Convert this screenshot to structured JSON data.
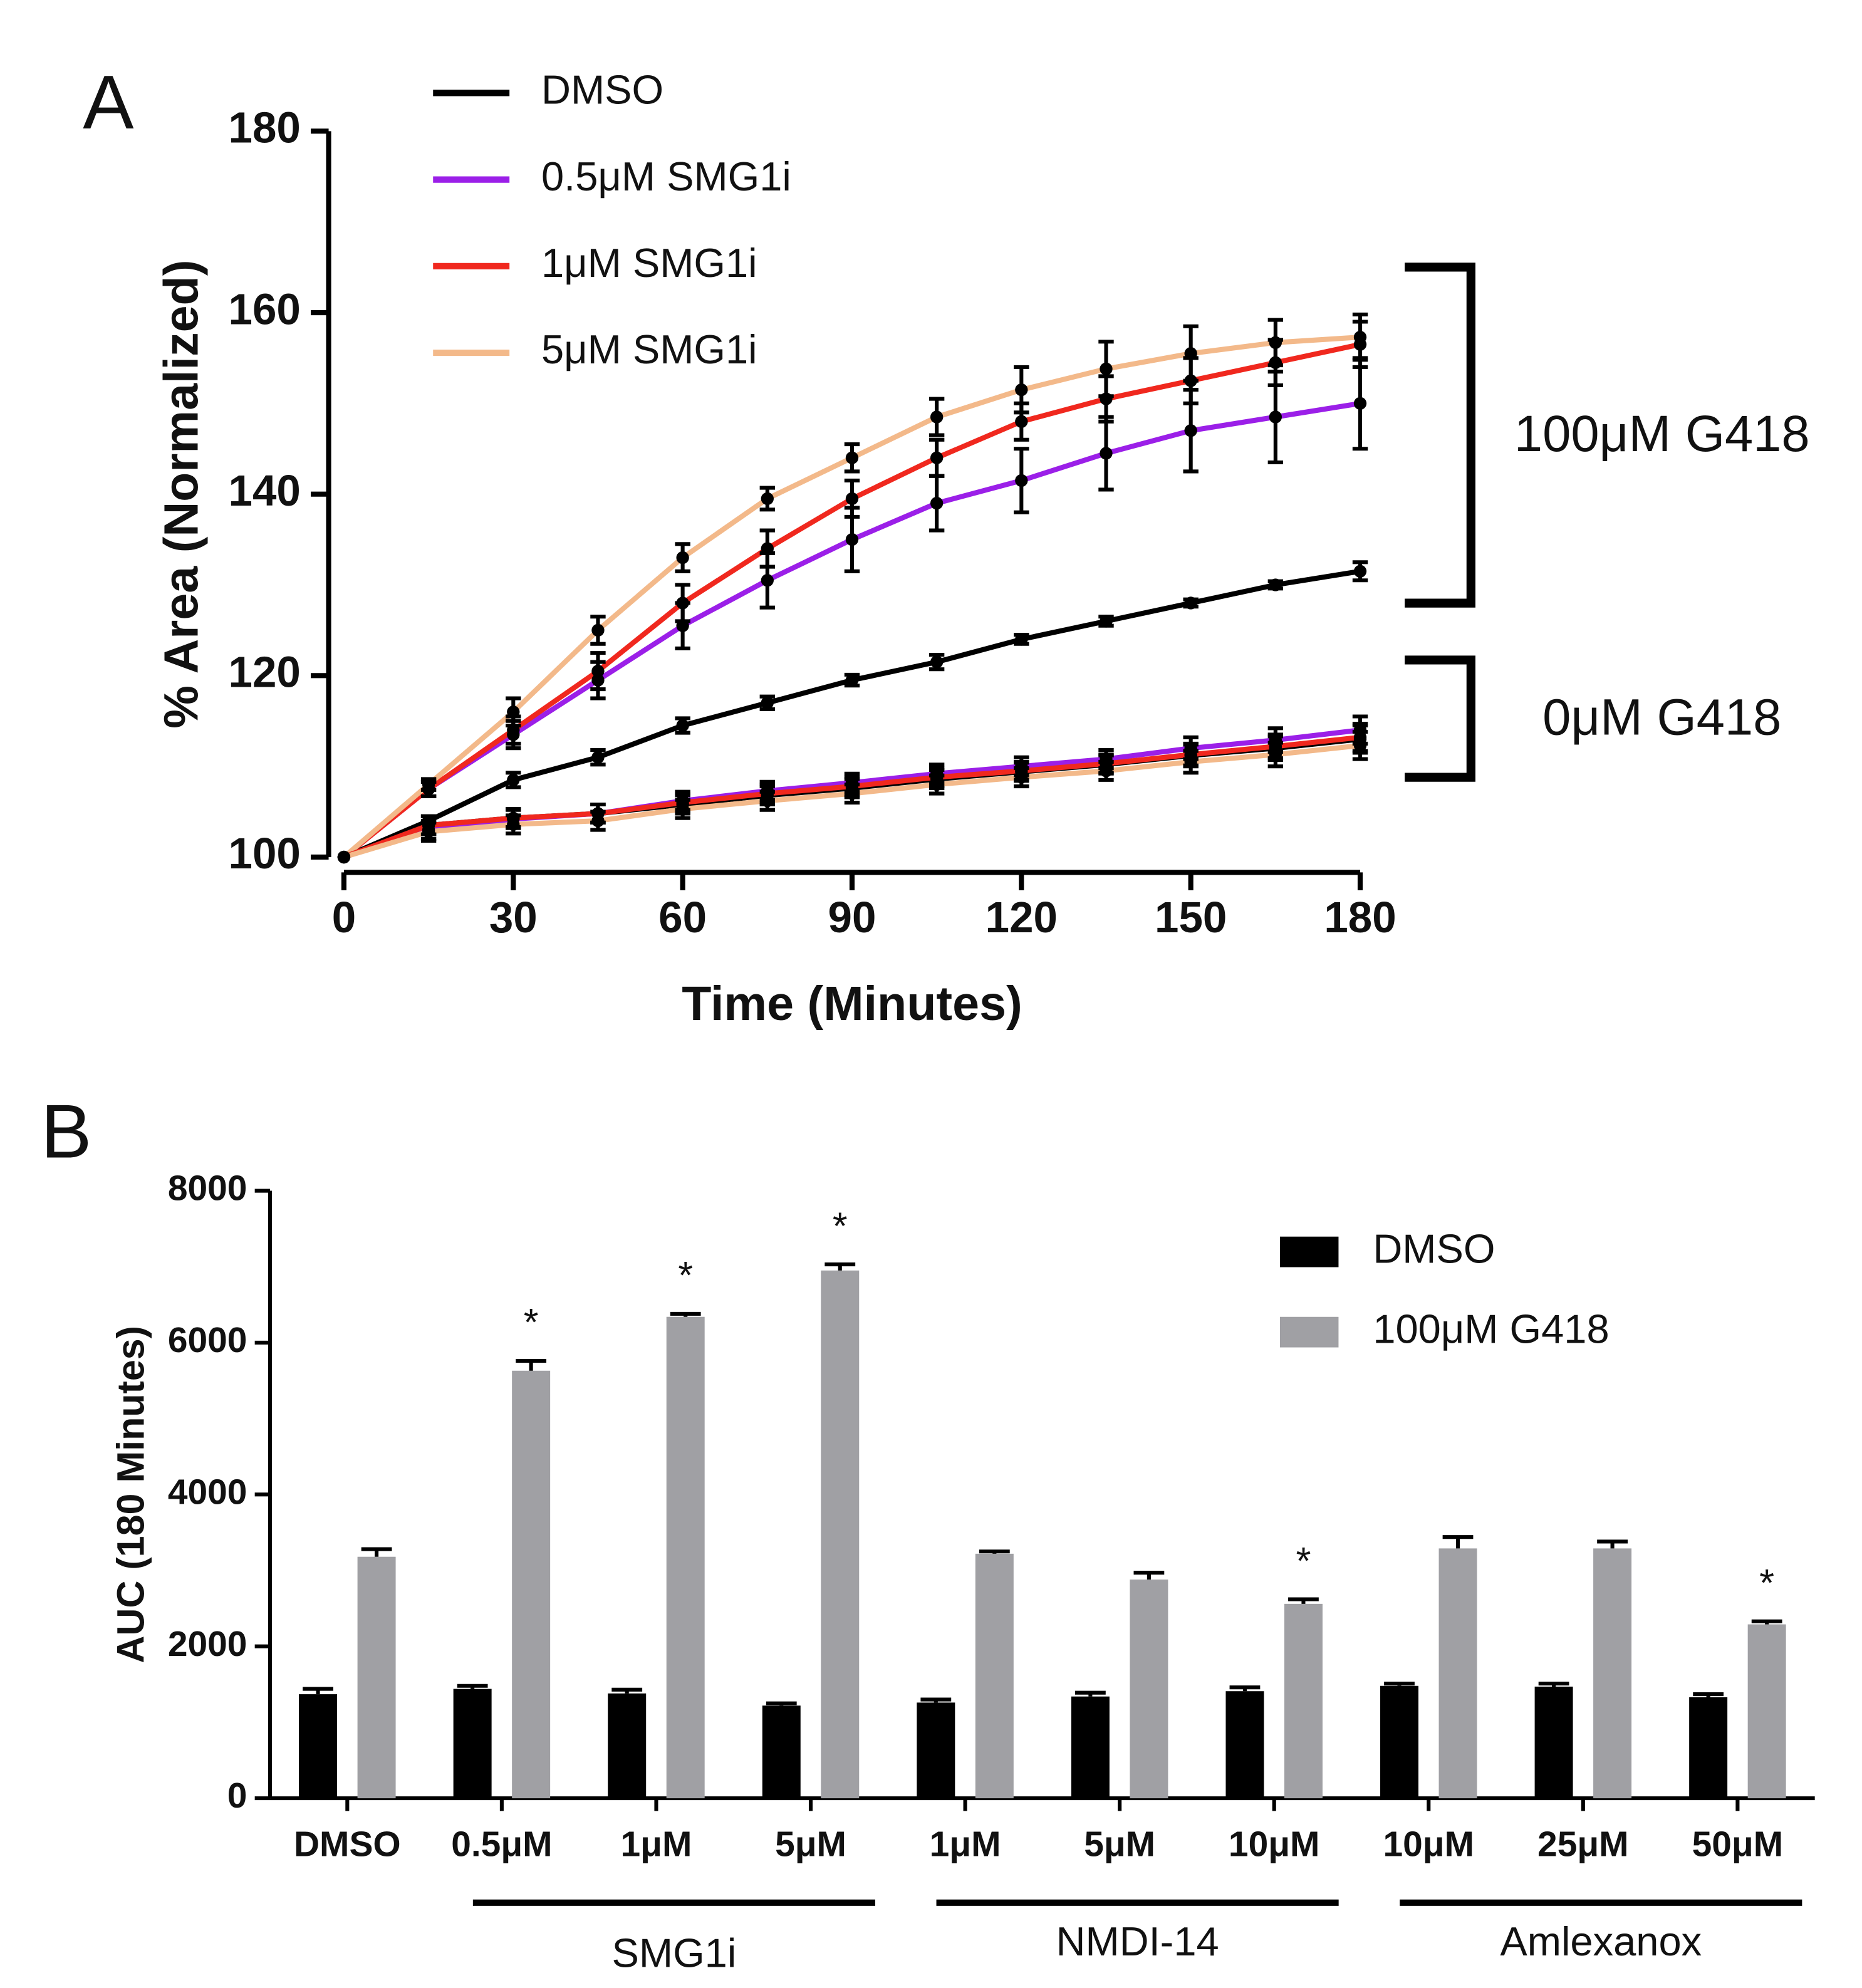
{
  "chart_data": [
    {
      "type": "line",
      "panel_label": "A",
      "x_label": "Time (Minutes)",
      "y_label": "% Area (Normalized)",
      "x": [
        0,
        15,
        30,
        45,
        60,
        75,
        90,
        105,
        120,
        135,
        150,
        165,
        180
      ],
      "xlim": [
        0,
        180
      ],
      "xticks": [
        0,
        30,
        60,
        90,
        120,
        150,
        180
      ],
      "ylim": [
        100,
        180
      ],
      "yticks": [
        100,
        120,
        140,
        160,
        180
      ],
      "series": [
        {
          "name": "DMSO",
          "color": "#000000"
        },
        {
          "name": "0.5μM SMG1i",
          "color": "#9b1fe8"
        },
        {
          "name": "1μM SMG1i",
          "color": "#f0281e"
        },
        {
          "name": "5μM SMG1i",
          "color": "#f3b98a"
        }
      ],
      "groups": [
        {
          "label": "100μM G418",
          "values": [
            [
              100,
              104,
              108.5,
              111,
              114.5,
              117,
              119.5,
              121.5,
              124,
              126,
              128,
              130,
              131.5
            ],
            [
              100,
              107.5,
              113.5,
              119.5,
              125.5,
              130.5,
              135,
              139,
              141.5,
              144.5,
              147,
              148.5,
              150
            ],
            [
              100,
              107.5,
              114,
              120.5,
              128,
              134,
              139.5,
              144,
              148,
              150.5,
              152.5,
              154.5,
              156.5
            ],
            [
              100,
              108,
              116,
              125,
              133,
              139.5,
              144,
              148.5,
              151.5,
              153.8,
              155.5,
              156.7,
              157.3
            ]
          ],
          "errors": [
            [
              0,
              0.5,
              0.8,
              0.8,
              0.8,
              0.7,
              0.6,
              0.8,
              0.5,
              0.5,
              0.4,
              0.4,
              1
            ],
            [
              0,
              0.8,
              1.5,
              2,
              2.5,
              3,
              3.5,
              3,
              3.5,
              4,
              4.5,
              5,
              5
            ],
            [
              0,
              0.8,
              1.5,
              2,
              2,
              2,
              2,
              2,
              2,
              2.5,
              2.5,
              2.5,
              2.5
            ],
            [
              0,
              0.6,
              1.5,
              1.5,
              1.5,
              1.2,
              1.5,
              2,
              2.5,
              3,
              3,
              2.5,
              2.5
            ]
          ]
        },
        {
          "label": "0μM G418",
          "values": [
            [
              100,
              103.5,
              104.3,
              104.8,
              105.8,
              106.8,
              107.6,
              108.6,
              109.4,
              110.2,
              111.2,
              112,
              113
            ],
            [
              100,
              103,
              104.2,
              104.8,
              106.2,
              107.3,
              108.2,
              109.2,
              110,
              110.8,
              112,
              112.9,
              114
            ],
            [
              100,
              103.5,
              104.3,
              104.8,
              106,
              107,
              107.8,
              108.8,
              109.5,
              110.3,
              111.3,
              112.2,
              113.2
            ],
            [
              100,
              102.8,
              103.6,
              104,
              105.3,
              106.2,
              107,
              108,
              108.8,
              109.5,
              110.5,
              111.3,
              112.3
            ]
          ],
          "errors": [
            [
              0,
              1,
              1,
              1,
              1,
              1,
              1,
              1,
              1,
              1,
              1.2,
              1.3,
              1.5
            ],
            [
              0,
              1,
              1,
              1,
              1,
              1,
              1,
              1,
              1,
              1,
              1.2,
              1.3,
              1.5
            ],
            [
              0,
              1,
              1,
              1,
              1,
              1,
              1,
              1,
              1,
              1,
              1.2,
              1.3,
              1.5
            ],
            [
              0,
              1,
              1,
              1,
              1,
              1,
              1,
              1,
              1,
              1,
              1.2,
              1.3,
              1.5
            ]
          ]
        }
      ]
    },
    {
      "type": "bar",
      "panel_label": "B",
      "y_label": "AUC (180 Minutes)",
      "categories": [
        "DMSO",
        "0.5μM",
        "1μM",
        "5μM",
        "1μM",
        "5μM",
        "10μM",
        "10μM",
        "25μM",
        "50μM"
      ],
      "category_groups": [
        null,
        "SMG1i",
        "SMG1i",
        "SMG1i",
        "NMDI-14",
        "NMDI-14",
        "NMDI-14",
        "Amlexanox",
        "Amlexanox",
        "Amlexanox"
      ],
      "ylim": [
        0,
        8000
      ],
      "yticks": [
        0,
        2000,
        4000,
        6000,
        8000
      ],
      "series": [
        {
          "name": "DMSO",
          "color": "#000000",
          "values": [
            1370,
            1440,
            1380,
            1220,
            1260,
            1340,
            1410,
            1480,
            1470,
            1330
          ],
          "errors": [
            70,
            40,
            50,
            30,
            40,
            50,
            50,
            30,
            40,
            40
          ]
        },
        {
          "name": "100μM G418",
          "color": "#a0a0a4",
          "values": [
            3180,
            5630,
            6340,
            6950,
            3220,
            2880,
            2560,
            3290,
            3290,
            2290
          ],
          "errors": [
            100,
            130,
            40,
            80,
            30,
            90,
            60,
            150,
            90,
            40
          ]
        }
      ],
      "significance": [
        null,
        "*",
        "*",
        "*",
        null,
        null,
        "*",
        null,
        null,
        "*"
      ]
    }
  ]
}
